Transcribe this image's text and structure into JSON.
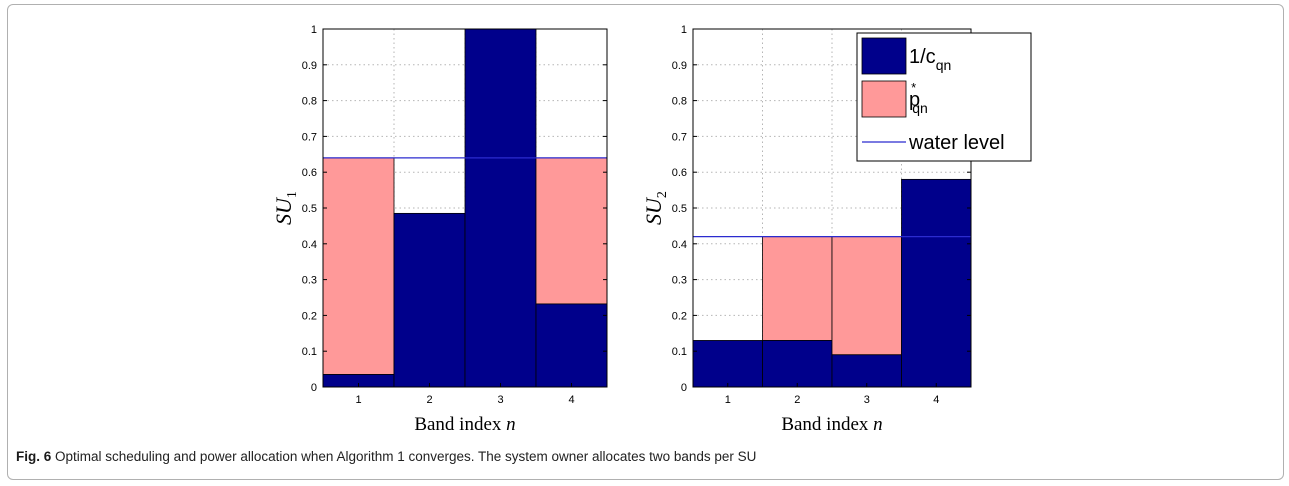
{
  "chart_data": [
    {
      "type": "bar",
      "ylabel": "SU",
      "ylabel_sub": "1",
      "xlabel": "Band index n",
      "categories": [
        "1",
        "2",
        "3",
        "4"
      ],
      "ylim": [
        0,
        1
      ],
      "yticks": [
        "0",
        "0.1",
        "0.2",
        "0.3",
        "0.4",
        "0.5",
        "0.6",
        "0.7",
        "0.8",
        "0.9",
        "1"
      ],
      "grid": true,
      "series": [
        {
          "name": "1/c_qn",
          "values": [
            0.035,
            0.485,
            1.0,
            0.232
          ]
        },
        {
          "name": "p*_qn",
          "values": [
            0.605,
            0,
            0,
            0.408
          ]
        }
      ],
      "water_level": 0.64
    },
    {
      "type": "bar",
      "ylabel": "SU",
      "ylabel_sub": "2",
      "xlabel": "Band index n",
      "categories": [
        "1",
        "2",
        "3",
        "4"
      ],
      "ylim": [
        0,
        1
      ],
      "yticks": [
        "0",
        "0.1",
        "0.2",
        "0.3",
        "0.4",
        "0.5",
        "0.6",
        "0.7",
        "0.8",
        "0.9",
        "1"
      ],
      "grid": true,
      "series": [
        {
          "name": "1/c_qn",
          "values": [
            0.13,
            0.13,
            0.09,
            0.58
          ]
        },
        {
          "name": "p*_qn",
          "values": [
            0,
            0.29,
            0.33,
            0
          ]
        }
      ],
      "water_level": 0.42
    }
  ],
  "legend": {
    "placement": "top-right",
    "items": [
      {
        "label": "1/c",
        "sub": "qn",
        "sup": ""
      },
      {
        "label": "p",
        "sub": "qn",
        "sup": "*"
      },
      {
        "label": "water level",
        "sub": "",
        "sup": ""
      }
    ]
  },
  "colors": {
    "inverse_gain": "#00008b",
    "power": "#ff9999",
    "water_level": "#2b2bcf",
    "grid": "#b5b5b5"
  },
  "caption": {
    "label": "Fig. 6",
    "text": " Optimal scheduling and power allocation when Algorithm 1 converges. The system owner allocates two bands per SU"
  }
}
